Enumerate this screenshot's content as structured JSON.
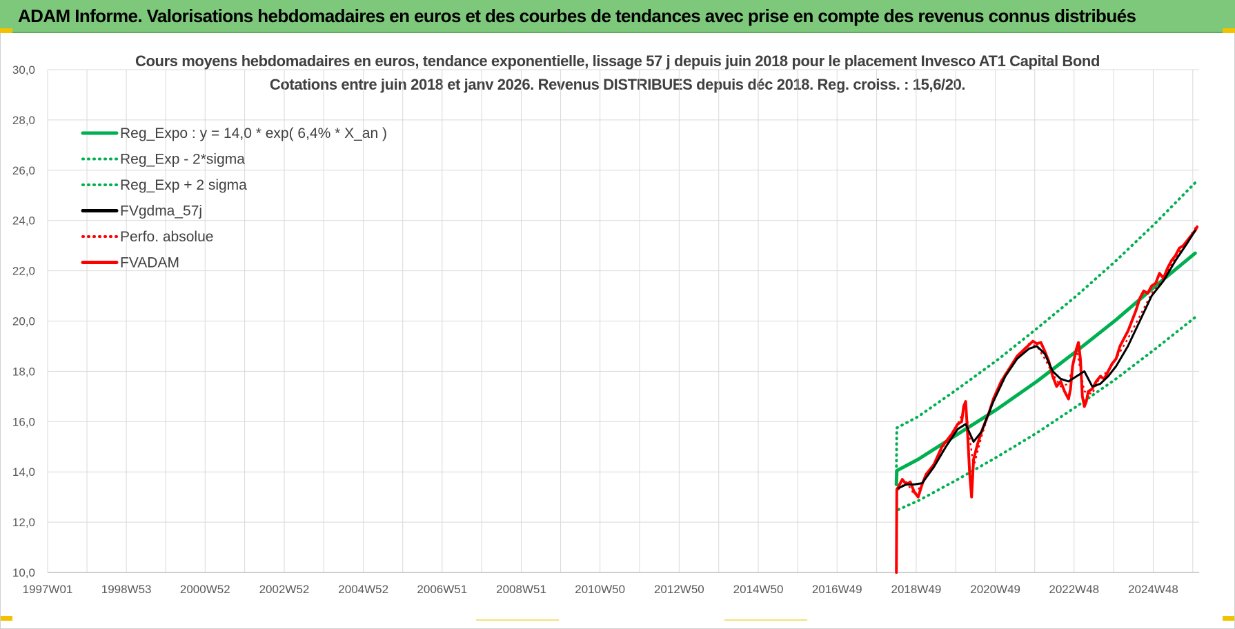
{
  "banner": {
    "title": "ADAM Informe. Valorisations hebdomadaires en euros et des courbes de tendances avec prise en compte des revenus connus distribués"
  },
  "chart_data": {
    "type": "line",
    "title": "Cours moyens hebdomadaires en euros, tendance exponentielle, lissage 57 j depuis juin 2018 pour le placement Invesco AT1 Capital Bond",
    "subtitle": "Cotations entre juin 2018 et janv 2026.  Revenus DISTRIBUES depuis déc 2018. Reg.  croiss. : 15,6/20.",
    "xlabel": "",
    "ylabel": "",
    "ylim": [
      10,
      30
    ],
    "xlim": [
      1997.0,
      2026.1
    ],
    "yticks": [
      "10,0",
      "12,0",
      "14,0",
      "16,0",
      "18,0",
      "20,0",
      "22,0",
      "24,0",
      "26,0",
      "28,0",
      "30,0"
    ],
    "xticks": [
      {
        "label": "1997W01",
        "x": 1997.0
      },
      {
        "label": "1998W53",
        "x": 1998.99
      },
      {
        "label": "2000W52",
        "x": 2000.98
      },
      {
        "label": "2002W52",
        "x": 2002.98
      },
      {
        "label": "2004W52",
        "x": 2004.98
      },
      {
        "label": "2006W51",
        "x": 2006.97
      },
      {
        "label": "2008W51",
        "x": 2008.97
      },
      {
        "label": "2010W50",
        "x": 2010.96
      },
      {
        "label": "2012W50",
        "x": 2012.96
      },
      {
        "label": "2014W50",
        "x": 2014.96
      },
      {
        "label": "2016W49",
        "x": 2016.95
      },
      {
        "label": "2018W49",
        "x": 2018.95
      },
      {
        "label": "2020W49",
        "x": 2020.95
      },
      {
        "label": "2022W48",
        "x": 2022.94
      },
      {
        "label": "2024W48",
        "x": 2024.94
      }
    ],
    "grid": true,
    "legend_position": "top-left",
    "series": [
      {
        "name": "Reg_Expo : y = 14,0 * exp( 6,4% *  X_an )",
        "color": "#00b050",
        "style": "solid",
        "x": [
          2018.45,
          2018.46,
          2019,
          2020,
          2021,
          2022,
          2023,
          2024,
          2025,
          2026
        ],
        "y": [
          13.5,
          14.05,
          14.5,
          15.5,
          16.5,
          17.6,
          18.8,
          20.05,
          21.4,
          22.7
        ]
      },
      {
        "name": "Reg_Exp - 2*sigma",
        "color": "#00b050",
        "style": "dotted",
        "x": [
          2018.5,
          2019,
          2020,
          2021,
          2022,
          2023,
          2024,
          2025,
          2026
        ],
        "y": [
          12.5,
          12.85,
          13.7,
          14.6,
          15.55,
          16.6,
          17.7,
          18.9,
          20.15
        ]
      },
      {
        "name": "Reg_Exp + 2 sigma",
        "color": "#00b050",
        "style": "dotted",
        "x": [
          2018.45,
          2018.46,
          2019,
          2020,
          2021,
          2022,
          2023,
          2024,
          2025,
          2026
        ],
        "y": [
          14.0,
          15.75,
          16.2,
          17.3,
          18.45,
          19.7,
          21.0,
          22.4,
          23.9,
          25.5
        ]
      },
      {
        "name": "FVgdma_57j",
        "color": "#000000",
        "style": "solid",
        "x": [
          2018.5,
          2018.7,
          2018.9,
          2019.1,
          2019.4,
          2019.7,
          2020.0,
          2020.2,
          2020.4,
          2020.6,
          2020.9,
          2021.2,
          2021.5,
          2021.8,
          2022.0,
          2022.2,
          2022.4,
          2022.6,
          2022.8,
          2023.0,
          2023.2,
          2023.4,
          2023.6,
          2023.8,
          2024.0,
          2024.3,
          2024.6,
          2024.9,
          2025.2,
          2025.5,
          2025.8,
          2026.0
        ],
        "y": [
          13.35,
          13.5,
          13.5,
          13.55,
          14.2,
          15.0,
          15.7,
          15.9,
          15.2,
          15.6,
          16.8,
          17.8,
          18.5,
          18.9,
          19.0,
          18.7,
          18.0,
          17.7,
          17.6,
          17.8,
          18.0,
          17.4,
          17.5,
          17.8,
          18.2,
          19.0,
          20.0,
          21.0,
          21.6,
          22.4,
          23.1,
          23.6
        ]
      },
      {
        "name": "Perfo. absolue",
        "color": "#ff0000",
        "style": "dotted",
        "x": [
          2018.5,
          2018.7,
          2018.9,
          2019.1,
          2019.4,
          2019.7,
          2020.0,
          2020.2,
          2020.4,
          2020.6,
          2020.9,
          2021.2,
          2021.5,
          2021.8,
          2022.0,
          2022.2,
          2022.4,
          2022.6,
          2022.8,
          2023.0,
          2023.2,
          2023.4,
          2023.6,
          2023.8,
          2024.0,
          2024.3,
          2024.6,
          2024.9,
          2025.2,
          2025.5,
          2025.8,
          2026.0
        ],
        "y": [
          13.3,
          13.6,
          13.1,
          13.5,
          14.3,
          15.2,
          15.9,
          16.6,
          14.2,
          15.4,
          16.9,
          17.9,
          18.6,
          19.1,
          19.0,
          18.5,
          17.9,
          17.4,
          17.5,
          18.9,
          17.2,
          17.1,
          17.8,
          18.0,
          18.5,
          19.3,
          20.2,
          21.1,
          21.7,
          22.5,
          23.2,
          23.7
        ]
      },
      {
        "name": "FVADAM",
        "color": "#ff0000",
        "style": "solid",
        "x": [
          2018.45,
          2018.46,
          2018.5,
          2018.6,
          2018.7,
          2018.8,
          2018.9,
          2019.0,
          2019.1,
          2019.2,
          2019.4,
          2019.6,
          2019.7,
          2019.85,
          2020.0,
          2020.1,
          2020.15,
          2020.2,
          2020.25,
          2020.3,
          2020.35,
          2020.4,
          2020.5,
          2020.6,
          2020.8,
          2020.9,
          2021.1,
          2021.3,
          2021.5,
          2021.7,
          2021.9,
          2022.0,
          2022.1,
          2022.2,
          2022.3,
          2022.4,
          2022.5,
          2022.6,
          2022.7,
          2022.8,
          2022.85,
          2022.9,
          2023.0,
          2023.05,
          2023.1,
          2023.15,
          2023.2,
          2023.25,
          2023.3,
          2023.4,
          2023.5,
          2023.6,
          2023.7,
          2023.8,
          2023.9,
          2024.0,
          2024.1,
          2024.2,
          2024.3,
          2024.4,
          2024.5,
          2024.6,
          2024.7,
          2024.8,
          2024.9,
          2025.0,
          2025.1,
          2025.2,
          2025.3,
          2025.4,
          2025.5,
          2025.6,
          2025.7,
          2025.8,
          2025.9,
          2026.0,
          2026.05
        ],
        "y": [
          10.0,
          13.3,
          13.4,
          13.7,
          13.5,
          13.6,
          13.2,
          13.0,
          13.5,
          13.9,
          14.3,
          15.0,
          15.2,
          15.5,
          15.9,
          16.0,
          16.6,
          16.8,
          15.5,
          14.0,
          13.0,
          14.5,
          15.1,
          15.6,
          16.4,
          16.9,
          17.6,
          18.1,
          18.6,
          18.9,
          19.2,
          19.1,
          19.15,
          18.8,
          18.4,
          17.8,
          17.4,
          17.6,
          17.2,
          16.9,
          17.3,
          18.2,
          18.9,
          19.15,
          18.5,
          17.0,
          16.6,
          16.8,
          17.2,
          17.3,
          17.6,
          17.8,
          17.7,
          18.0,
          18.3,
          18.5,
          19.0,
          19.3,
          19.6,
          20.0,
          20.4,
          20.9,
          21.2,
          21.1,
          21.4,
          21.5,
          21.9,
          21.7,
          22.1,
          22.4,
          22.6,
          22.9,
          23.0,
          23.2,
          23.4,
          23.6,
          23.75
        ]
      }
    ]
  }
}
